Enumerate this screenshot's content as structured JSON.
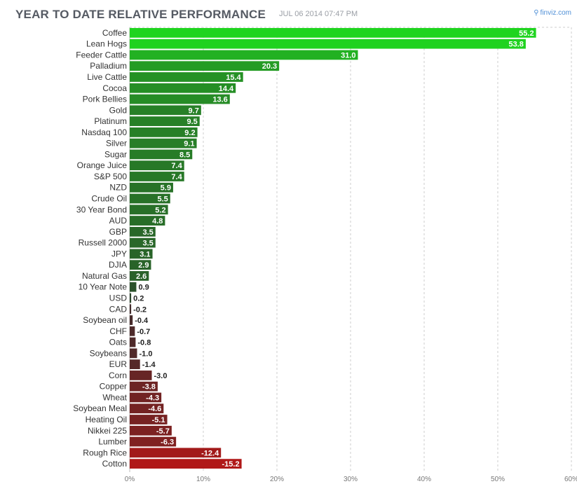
{
  "header": {
    "title": "YEAR TO DATE RELATIVE PERFORMANCE",
    "timestamp": "JUL 06 2014 07:47 PM",
    "brand": "finviz.com",
    "brand_icon": "magnifier-icon"
  },
  "chart_data": {
    "type": "bar",
    "orientation": "horizontal",
    "title": "YEAR TO DATE RELATIVE PERFORMANCE",
    "xlim": [
      0,
      60
    ],
    "xticks": [
      "0%",
      "10%",
      "20%",
      "30%",
      "40%",
      "50%",
      "60%"
    ],
    "grid": true,
    "categories": [
      "Coffee",
      "Lean Hogs",
      "Feeder Cattle",
      "Palladium",
      "Live Cattle",
      "Cocoa",
      "Pork Bellies",
      "Gold",
      "Platinum",
      "Nasdaq 100",
      "Silver",
      "Sugar",
      "Orange Juice",
      "S&P 500",
      "NZD",
      "Crude Oil",
      "30 Year Bond",
      "AUD",
      "GBP",
      "Russell 2000",
      "JPY",
      "DJIA",
      "Natural Gas",
      "10 Year Note",
      "USD",
      "CAD",
      "Soybean oil",
      "CHF",
      "Oats",
      "Soybeans",
      "EUR",
      "Corn",
      "Copper",
      "Wheat",
      "Soybean Meal",
      "Heating Oil",
      "Nikkei 225",
      "Lumber",
      "Rough Rice",
      "Cotton"
    ],
    "values": [
      55.2,
      53.8,
      31.0,
      20.3,
      15.4,
      14.4,
      13.6,
      9.7,
      9.5,
      9.2,
      9.1,
      8.5,
      7.4,
      7.4,
      5.9,
      5.5,
      5.2,
      4.8,
      3.5,
      3.5,
      3.1,
      2.9,
      2.6,
      0.9,
      0.2,
      -0.2,
      -0.4,
      -0.7,
      -0.8,
      -1.0,
      -1.4,
      -3.0,
      -3.8,
      -4.3,
      -4.6,
      -5.1,
      -5.7,
      -6.3,
      -12.4,
      -15.2
    ],
    "value_labels": [
      "55.2",
      "53.8",
      "31.0",
      "20.3",
      "15.4",
      "14.4",
      "13.6",
      "9.7",
      "9.5",
      "9.2",
      "9.1",
      "8.5",
      "7.4",
      "7.4",
      "5.9",
      "5.5",
      "5.2",
      "4.8",
      "3.5",
      "3.5",
      "3.1",
      "2.9",
      "2.6",
      "0.9",
      "0.2",
      "-0.2",
      "-0.4",
      "-0.7",
      "-0.8",
      "-1.0",
      "-1.4",
      "-3.0",
      "-3.8",
      "-4.3",
      "-4.6",
      "-5.1",
      "-5.7",
      "-6.3",
      "-12.4",
      "-15.2"
    ],
    "colors": {
      "positive_strong": "#1fd41f",
      "positive_weak": "#2d3a2d",
      "negative_weak": "#3a2d2d",
      "negative_strong": "#b01818",
      "grid": "#cccccc"
    }
  }
}
